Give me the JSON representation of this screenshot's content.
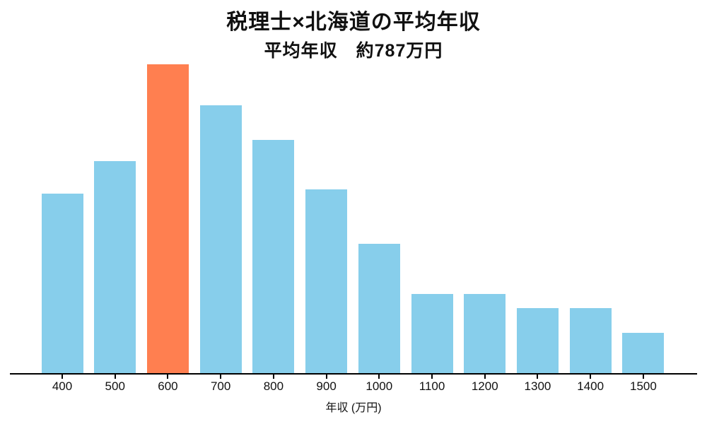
{
  "chart_data": {
    "type": "bar",
    "title": "税理士×北海道の平均年収",
    "subtitle": "平均年収　約787万円",
    "xlabel": "年収 (万円)",
    "ylabel": "",
    "categories": [
      "400",
      "500",
      "600",
      "700",
      "800",
      "900",
      "1000",
      "1100",
      "1200",
      "1300",
      "1400",
      "1500"
    ],
    "values": [
      254,
      300,
      437,
      379,
      330,
      260,
      183,
      112,
      112,
      92,
      92,
      57
    ],
    "values_note": "relative heights (no y-axis shown in chart)",
    "ylim": [
      0,
      460
    ],
    "grid": false,
    "legend": false,
    "highlight_index": 2,
    "highlight_category": "600",
    "colors": {
      "bar": "#87CEEB",
      "highlight": "#FF7F50",
      "axis": "#000000",
      "text": "#111111",
      "background": "#FFFFFF"
    }
  }
}
